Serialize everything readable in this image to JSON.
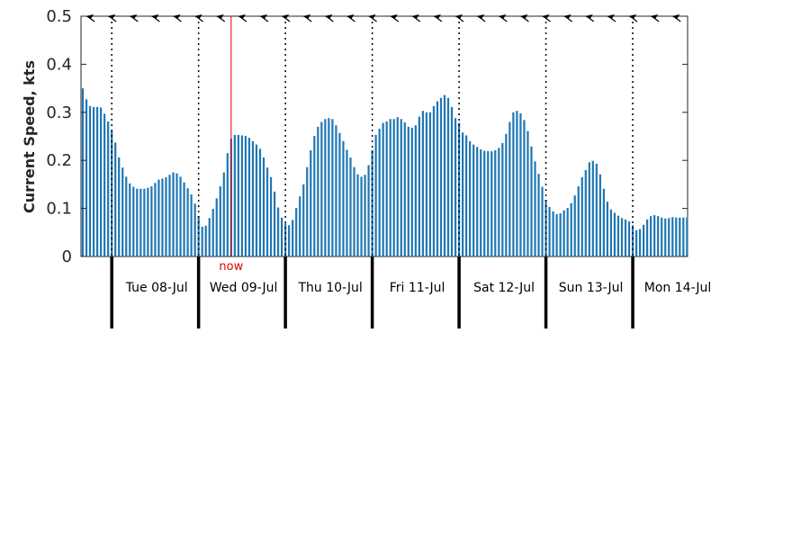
{
  "chart_data": {
    "type": "bar",
    "ylabel": "Current Speed, kts",
    "ylim": [
      0,
      0.5
    ],
    "yticks": [
      "0",
      "0.1",
      "0.2",
      "0.3",
      "0.4",
      "0.5"
    ],
    "grid": false,
    "bar_color": "#1f77b4",
    "now_color": "#e00000",
    "now_label": "now",
    "now_position_hours": 41.5,
    "hours_per_bar": 1,
    "start_hour": 0,
    "days": [
      "Tue 08-Jul",
      "Wed 09-Jul",
      "Thu 10-Jul",
      "Fri 11-Jul",
      "Sat 12-Jul",
      "Sun 13-Jul",
      "Mon 14-Jul"
    ],
    "day_boundaries_hours": [
      8.5,
      32.5,
      56.5,
      80.5,
      104.5,
      128.5,
      152.5
    ],
    "values": [
      0.35,
      0.327,
      0.313,
      0.311,
      0.311,
      0.31,
      0.297,
      0.281,
      0.262,
      0.237,
      0.206,
      0.185,
      0.166,
      0.152,
      0.145,
      0.141,
      0.141,
      0.141,
      0.143,
      0.146,
      0.153,
      0.16,
      0.162,
      0.165,
      0.17,
      0.175,
      0.173,
      0.166,
      0.154,
      0.142,
      0.129,
      0.11,
      0.084,
      0.062,
      0.064,
      0.08,
      0.099,
      0.121,
      0.146,
      0.175,
      0.215,
      0.245,
      0.253,
      0.253,
      0.252,
      0.251,
      0.247,
      0.24,
      0.233,
      0.224,
      0.206,
      0.185,
      0.165,
      0.135,
      0.102,
      0.081,
      0.069,
      0.065,
      0.076,
      0.101,
      0.125,
      0.15,
      0.186,
      0.221,
      0.251,
      0.27,
      0.28,
      0.286,
      0.288,
      0.286,
      0.273,
      0.257,
      0.24,
      0.222,
      0.206,
      0.186,
      0.171,
      0.166,
      0.17,
      0.19,
      0.221,
      0.253,
      0.266,
      0.278,
      0.281,
      0.286,
      0.286,
      0.29,
      0.286,
      0.279,
      0.27,
      0.268,
      0.273,
      0.291,
      0.303,
      0.3,
      0.3,
      0.313,
      0.323,
      0.33,
      0.336,
      0.33,
      0.311,
      0.288,
      0.278,
      0.258,
      0.252,
      0.24,
      0.233,
      0.228,
      0.223,
      0.22,
      0.219,
      0.219,
      0.221,
      0.226,
      0.236,
      0.255,
      0.28,
      0.3,
      0.303,
      0.298,
      0.284,
      0.261,
      0.229,
      0.198,
      0.172,
      0.145,
      0.118,
      0.103,
      0.094,
      0.088,
      0.09,
      0.096,
      0.101,
      0.111,
      0.127,
      0.146,
      0.165,
      0.18,
      0.196,
      0.199,
      0.193,
      0.171,
      0.141,
      0.114,
      0.098,
      0.091,
      0.085,
      0.08,
      0.077,
      0.073,
      0.065,
      0.055,
      0.057,
      0.066,
      0.077,
      0.084,
      0.086,
      0.084,
      0.081,
      0.079,
      0.08,
      0.082,
      0.081,
      0.081,
      0.081,
      0.081
    ]
  }
}
